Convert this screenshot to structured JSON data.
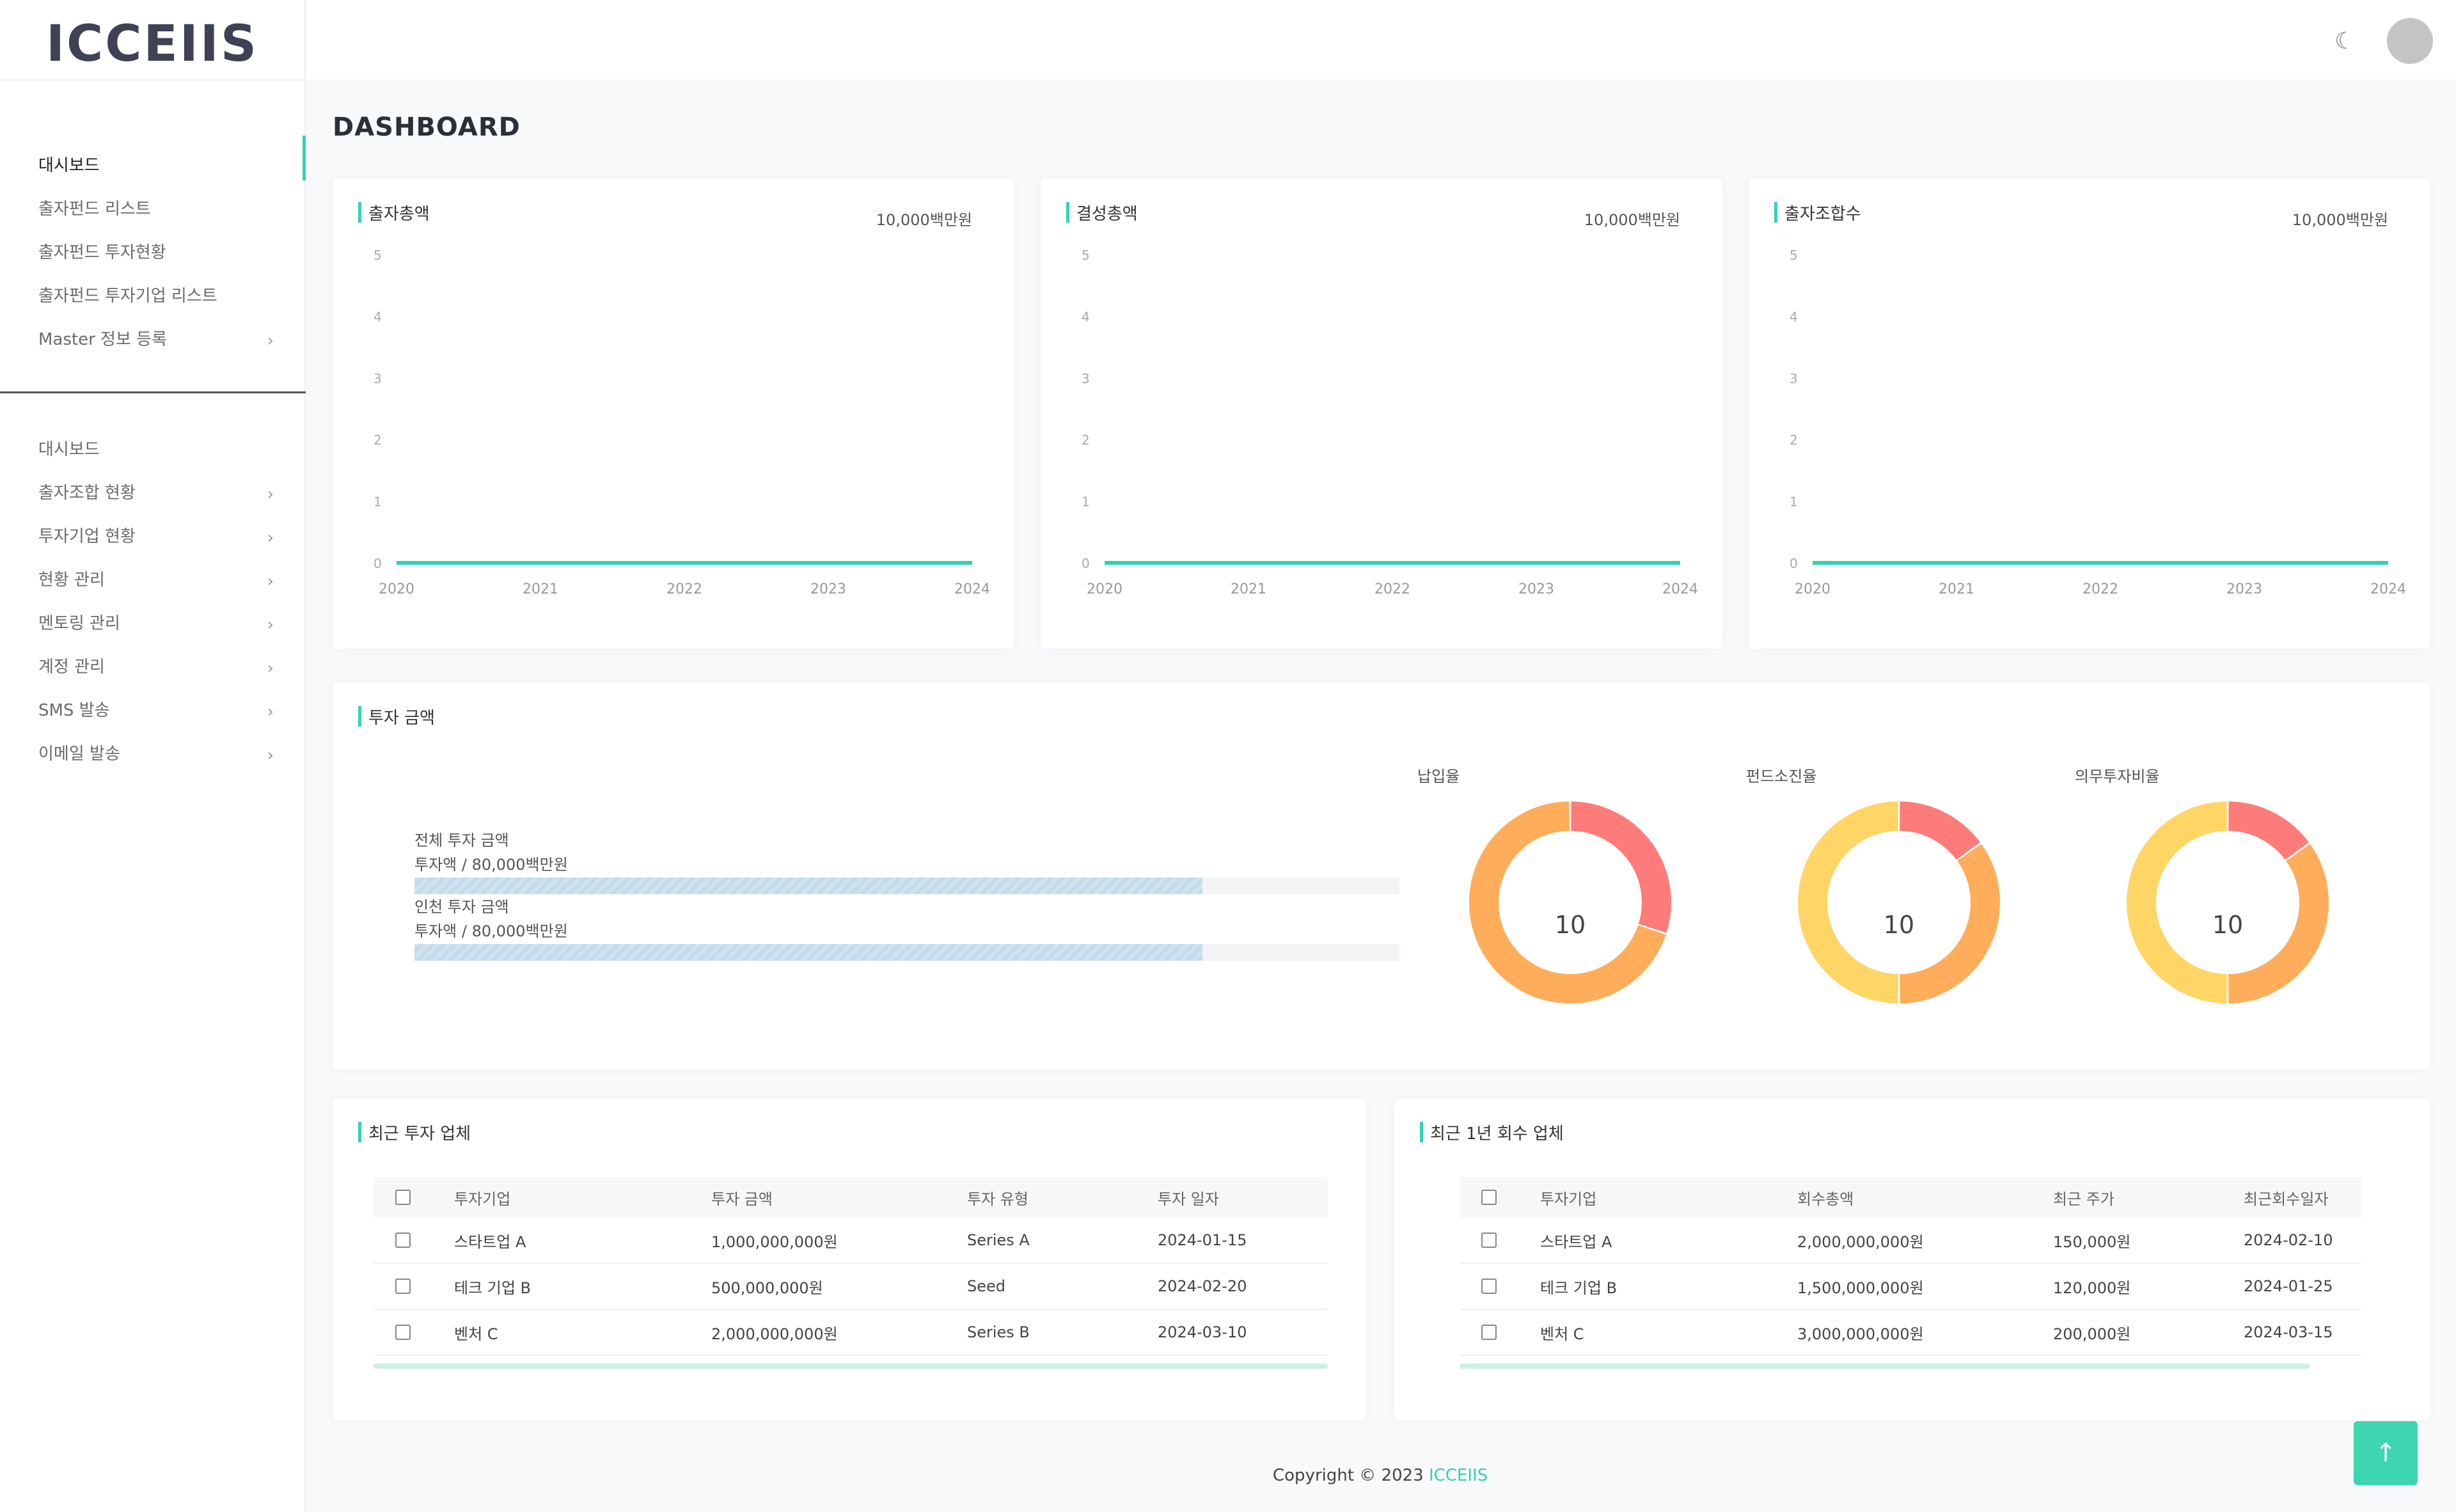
{
  "brand": "ICCEIIS",
  "page_title": "DASHBOARD",
  "sidebar": {
    "top_items": [
      {
        "label": "대시보드",
        "active": true,
        "chevron": false
      },
      {
        "label": "출자펀드 리스트",
        "active": false,
        "chevron": false
      },
      {
        "label": "출자펀드 투자현황",
        "active": false,
        "chevron": false
      },
      {
        "label": "출자펀드 투자기업 리스트",
        "active": false,
        "chevron": false
      },
      {
        "label": "Master 정보 등록",
        "active": false,
        "chevron": true
      }
    ],
    "bottom_items": [
      {
        "label": "대시보드",
        "chevron": false
      },
      {
        "label": "출자조합 현황",
        "chevron": true
      },
      {
        "label": "투자기업 현황",
        "chevron": true
      },
      {
        "label": "현황 관리",
        "chevron": true
      },
      {
        "label": "멘토링 관리",
        "chevron": true
      },
      {
        "label": "계정 관리",
        "chevron": true
      },
      {
        "label": "SMS 발송",
        "chevron": true
      },
      {
        "label": "이메일 발송",
        "chevron": true
      }
    ],
    "chevron_glyph": "›"
  },
  "topbar": {
    "theme_icon": "moon-icon",
    "avatar_icon": "user-avatar"
  },
  "stat_cards": [
    {
      "title": "출자총액",
      "unit": "10,000백만원"
    },
    {
      "title": "결성총액",
      "unit": "10,000백만원"
    },
    {
      "title": "출자조합수",
      "unit": "10,000백만원"
    }
  ],
  "chart_data": [
    {
      "type": "line",
      "title": "출자총액",
      "x": [
        "2020",
        "2021",
        "2022",
        "2023",
        "2024"
      ],
      "values": [
        0,
        0,
        0,
        0,
        0
      ],
      "yticks": [
        "0",
        "1",
        "2",
        "3",
        "4",
        "5"
      ],
      "ylim": [
        0,
        5
      ],
      "color": "#2fd3b5",
      "grid": false
    },
    {
      "type": "line",
      "title": "결성총액",
      "x": [
        "2020",
        "2021",
        "2022",
        "2023",
        "2024"
      ],
      "values": [
        0,
        0,
        0,
        0,
        0
      ],
      "yticks": [
        "0",
        "1",
        "2",
        "3",
        "4",
        "5"
      ],
      "ylim": [
        0,
        5
      ],
      "color": "#2fd3b5",
      "grid": false
    },
    {
      "type": "line",
      "title": "출자조합수",
      "x": [
        "2020",
        "2021",
        "2022",
        "2023",
        "2024"
      ],
      "values": [
        0,
        0,
        0,
        0,
        0
      ],
      "yticks": [
        "0",
        "1",
        "2",
        "3",
        "4",
        "5"
      ],
      "ylim": [
        0,
        5
      ],
      "color": "#2fd3b5",
      "grid": false
    }
  ],
  "investment": {
    "title": "투자 금액",
    "bars": [
      {
        "label": "전체 투자 금액",
        "sub": "투자액 / 80,000백만원",
        "fraction": 0.8
      },
      {
        "label": "인천 투자 금액",
        "sub": "투자액 / 80,000백만원",
        "fraction": 0.8
      }
    ],
    "donuts": [
      {
        "label": "납입율",
        "value": "10",
        "colors": [
          "#fd7c7a",
          "#ffad5b"
        ],
        "split": 0.3
      },
      {
        "label": "펀드소진율",
        "value": "10",
        "colors": [
          "#fd7c7a",
          "#ffad5b",
          "#ffd566"
        ],
        "split": 0.15
      },
      {
        "label": "의무투자비율",
        "value": "10",
        "colors": [
          "#fd7c7a",
          "#ffad5b",
          "#ffd566"
        ],
        "split": 0.15
      }
    ]
  },
  "recent_investments": {
    "title": "최근 투자 업체",
    "columns": [
      "투자기업",
      "투자 금액",
      "투자 유형",
      "투자 일자"
    ],
    "rows": [
      [
        "스타트업 A",
        "1,000,000,000원",
        "Series A",
        "2024-01-15"
      ],
      [
        "테크 기업 B",
        "500,000,000원",
        "Seed",
        "2024-02-20"
      ],
      [
        "벤처 C",
        "2,000,000,000원",
        "Series B",
        "2024-03-10"
      ]
    ]
  },
  "recent_exits": {
    "title": "최근 1년 회수 업체",
    "columns": [
      "투자기업",
      "회수총액",
      "최근 주가",
      "최근회수일자"
    ],
    "rows": [
      [
        "스타트업 A",
        "2,000,000,000원",
        "150,000원",
        "2024-02-10"
      ],
      [
        "테크 기업 B",
        "1,500,000,000원",
        "120,000원",
        "2024-01-25"
      ],
      [
        "벤처 C",
        "3,000,000,000원",
        "200,000원",
        "2024-03-15"
      ]
    ]
  },
  "footer": {
    "text": "Copyright © 2023 ",
    "link": "ICCEIIS"
  },
  "scroll_top": {
    "glyph": "↑"
  }
}
